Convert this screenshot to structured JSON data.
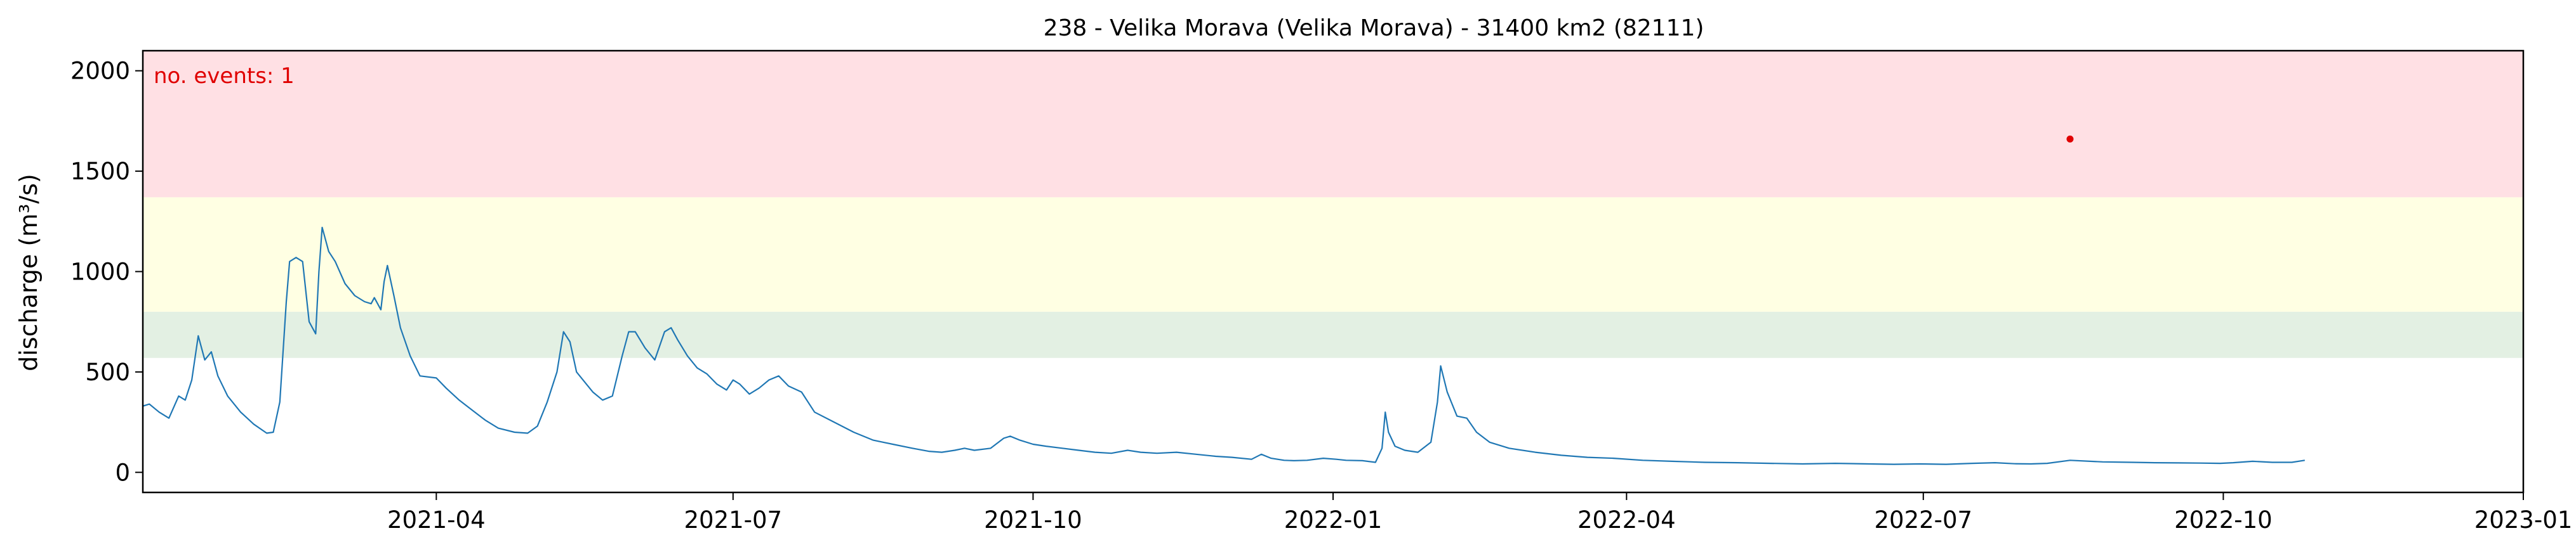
{
  "chart_data": {
    "type": "line",
    "title": "238 - Velika Morava (Velika Morava) - 31400 km2 (82111)",
    "ylabel": "discharge (m³/s)",
    "xlabel": "",
    "xlim": [
      "2021-01-01",
      "2023-01-01"
    ],
    "ylim": [
      -100,
      2100
    ],
    "yticks": [
      0,
      500,
      1000,
      1500,
      2000
    ],
    "xticks": [
      {
        "date": "2021-04-01",
        "label": "2021-04"
      },
      {
        "date": "2021-07-01",
        "label": "2021-07"
      },
      {
        "date": "2021-10-01",
        "label": "2021-10"
      },
      {
        "date": "2022-01-01",
        "label": "2022-01"
      },
      {
        "date": "2022-04-01",
        "label": "2022-04"
      },
      {
        "date": "2022-07-01",
        "label": "2022-07"
      },
      {
        "date": "2022-10-01",
        "label": "2022-10"
      },
      {
        "date": "2023-01-01",
        "label": "2023-01"
      }
    ],
    "grid": false,
    "thresholds": [
      {
        "from": 570,
        "to": 800,
        "color": "#e3f0e3"
      },
      {
        "from": 800,
        "to": 1370,
        "color": "#ffffe3"
      },
      {
        "from": 1370,
        "to": 2100,
        "color": "#ffe0e4"
      }
    ],
    "annotation": {
      "text": "no. events: 1",
      "color": "#e00000"
    },
    "series_color": "#1f77b4",
    "events": [
      {
        "date": "2022-08-15",
        "value": 1660,
        "color": "#e00000"
      }
    ],
    "series": [
      {
        "points": [
          [
            "2021-01-01",
            330
          ],
          [
            "2021-01-03",
            340
          ],
          [
            "2021-01-06",
            300
          ],
          [
            "2021-01-09",
            270
          ],
          [
            "2021-01-12",
            380
          ],
          [
            "2021-01-14",
            360
          ],
          [
            "2021-01-16",
            460
          ],
          [
            "2021-01-18",
            680
          ],
          [
            "2021-01-20",
            560
          ],
          [
            "2021-01-22",
            600
          ],
          [
            "2021-01-24",
            480
          ],
          [
            "2021-01-27",
            380
          ],
          [
            "2021-01-31",
            300
          ],
          [
            "2021-02-04",
            240
          ],
          [
            "2021-02-08",
            195
          ],
          [
            "2021-02-10",
            200
          ],
          [
            "2021-02-12",
            350
          ],
          [
            "2021-02-14",
            850
          ],
          [
            "2021-02-15",
            1050
          ],
          [
            "2021-02-17",
            1070
          ],
          [
            "2021-02-19",
            1050
          ],
          [
            "2021-02-21",
            750
          ],
          [
            "2021-02-23",
            690
          ],
          [
            "2021-02-24",
            1000
          ],
          [
            "2021-02-25",
            1220
          ],
          [
            "2021-02-27",
            1100
          ],
          [
            "2021-03-01",
            1050
          ],
          [
            "2021-03-04",
            940
          ],
          [
            "2021-03-07",
            880
          ],
          [
            "2021-03-10",
            850
          ],
          [
            "2021-03-12",
            840
          ],
          [
            "2021-03-13",
            870
          ],
          [
            "2021-03-15",
            810
          ],
          [
            "2021-03-16",
            950
          ],
          [
            "2021-03-17",
            1030
          ],
          [
            "2021-03-19",
            880
          ],
          [
            "2021-03-21",
            720
          ],
          [
            "2021-03-24",
            580
          ],
          [
            "2021-03-27",
            480
          ],
          [
            "2021-04-01",
            470
          ],
          [
            "2021-04-04",
            420
          ],
          [
            "2021-04-08",
            360
          ],
          [
            "2021-04-12",
            310
          ],
          [
            "2021-04-16",
            260
          ],
          [
            "2021-04-20",
            220
          ],
          [
            "2021-04-25",
            200
          ],
          [
            "2021-04-29",
            195
          ],
          [
            "2021-05-02",
            230
          ],
          [
            "2021-05-05",
            350
          ],
          [
            "2021-05-08",
            500
          ],
          [
            "2021-05-10",
            700
          ],
          [
            "2021-05-12",
            650
          ],
          [
            "2021-05-14",
            500
          ],
          [
            "2021-05-17",
            440
          ],
          [
            "2021-05-19",
            400
          ],
          [
            "2021-05-22",
            360
          ],
          [
            "2021-05-25",
            380
          ],
          [
            "2021-05-28",
            580
          ],
          [
            "2021-05-30",
            700
          ],
          [
            "2021-06-01",
            700
          ],
          [
            "2021-06-04",
            620
          ],
          [
            "2021-06-07",
            560
          ],
          [
            "2021-06-10",
            700
          ],
          [
            "2021-06-12",
            720
          ],
          [
            "2021-06-14",
            660
          ],
          [
            "2021-06-17",
            580
          ],
          [
            "2021-06-20",
            520
          ],
          [
            "2021-06-23",
            490
          ],
          [
            "2021-06-26",
            440
          ],
          [
            "2021-06-29",
            410
          ],
          [
            "2021-07-01",
            460
          ],
          [
            "2021-07-03",
            440
          ],
          [
            "2021-07-06",
            390
          ],
          [
            "2021-07-09",
            420
          ],
          [
            "2021-07-12",
            460
          ],
          [
            "2021-07-15",
            480
          ],
          [
            "2021-07-18",
            430
          ],
          [
            "2021-07-22",
            400
          ],
          [
            "2021-07-26",
            300
          ],
          [
            "2021-08-01",
            250
          ],
          [
            "2021-08-07",
            200
          ],
          [
            "2021-08-13",
            160
          ],
          [
            "2021-08-19",
            140
          ],
          [
            "2021-08-25",
            120
          ],
          [
            "2021-08-30",
            105
          ],
          [
            "2021-09-03",
            100
          ],
          [
            "2021-09-07",
            110
          ],
          [
            "2021-09-10",
            120
          ],
          [
            "2021-09-13",
            110
          ],
          [
            "2021-09-18",
            120
          ],
          [
            "2021-09-22",
            170
          ],
          [
            "2021-09-24",
            180
          ],
          [
            "2021-09-27",
            160
          ],
          [
            "2021-10-01",
            140
          ],
          [
            "2021-10-05",
            130
          ],
          [
            "2021-10-10",
            120
          ],
          [
            "2021-10-15",
            110
          ],
          [
            "2021-10-20",
            100
          ],
          [
            "2021-10-25",
            95
          ],
          [
            "2021-10-30",
            110
          ],
          [
            "2021-11-03",
            100
          ],
          [
            "2021-11-08",
            95
          ],
          [
            "2021-11-14",
            100
          ],
          [
            "2021-11-20",
            90
          ],
          [
            "2021-11-26",
            80
          ],
          [
            "2021-12-01",
            75
          ],
          [
            "2021-12-07",
            65
          ],
          [
            "2021-12-10",
            90
          ],
          [
            "2021-12-13",
            70
          ],
          [
            "2021-12-17",
            60
          ],
          [
            "2021-12-20",
            58
          ],
          [
            "2021-12-24",
            60
          ],
          [
            "2021-12-29",
            70
          ],
          [
            "2022-01-02",
            65
          ],
          [
            "2022-01-05",
            60
          ],
          [
            "2022-01-10",
            58
          ],
          [
            "2022-01-14",
            50
          ],
          [
            "2022-01-16",
            120
          ],
          [
            "2022-01-17",
            300
          ],
          [
            "2022-01-18",
            200
          ],
          [
            "2022-01-20",
            130
          ],
          [
            "2022-01-23",
            110
          ],
          [
            "2022-01-27",
            100
          ],
          [
            "2022-01-31",
            150
          ],
          [
            "2022-02-02",
            350
          ],
          [
            "2022-02-03",
            530
          ],
          [
            "2022-02-05",
            400
          ],
          [
            "2022-02-08",
            280
          ],
          [
            "2022-02-11",
            270
          ],
          [
            "2022-02-14",
            200
          ],
          [
            "2022-02-18",
            150
          ],
          [
            "2022-02-24",
            120
          ],
          [
            "2022-03-04",
            100
          ],
          [
            "2022-03-12",
            85
          ],
          [
            "2022-03-20",
            75
          ],
          [
            "2022-03-28",
            70
          ],
          [
            "2022-04-06",
            60
          ],
          [
            "2022-04-15",
            55
          ],
          [
            "2022-04-25",
            50
          ],
          [
            "2022-05-05",
            48
          ],
          [
            "2022-05-15",
            45
          ],
          [
            "2022-05-25",
            42
          ],
          [
            "2022-06-04",
            45
          ],
          [
            "2022-06-14",
            42
          ],
          [
            "2022-06-22",
            40
          ],
          [
            "2022-06-30",
            42
          ],
          [
            "2022-07-08",
            40
          ],
          [
            "2022-07-16",
            45
          ],
          [
            "2022-07-23",
            48
          ],
          [
            "2022-07-29",
            43
          ],
          [
            "2022-08-03",
            42
          ],
          [
            "2022-08-08",
            45
          ],
          [
            "2022-08-15",
            60
          ],
          [
            "2022-08-25",
            52
          ],
          [
            "2022-09-03",
            50
          ],
          [
            "2022-09-10",
            48
          ],
          [
            "2022-09-17",
            47
          ],
          [
            "2022-09-24",
            46
          ],
          [
            "2022-09-30",
            45
          ],
          [
            "2022-10-04",
            48
          ],
          [
            "2022-10-10",
            55
          ],
          [
            "2022-10-16",
            50
          ],
          [
            "2022-10-22",
            50
          ],
          [
            "2022-10-26",
            60
          ]
        ]
      }
    ]
  }
}
